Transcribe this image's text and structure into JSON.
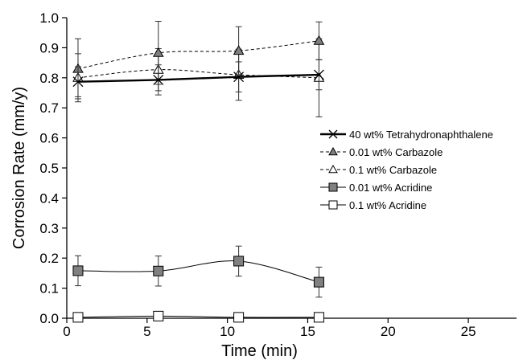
{
  "chart_data": {
    "type": "line",
    "title": "",
    "xlabel": "Time (min)",
    "ylabel": "Corrosion Rate (mm/y)",
    "xlim": [
      0,
      28
    ],
    "ylim": [
      0,
      1.0
    ],
    "x_ticks": [
      0,
      5,
      10,
      15,
      20,
      25
    ],
    "x_tick_labels": [
      "0",
      "5",
      "10",
      "15",
      "20",
      "25"
    ],
    "y_ticks": [
      0,
      0.1,
      0.2,
      0.3,
      0.4,
      0.5,
      0.6,
      0.7,
      0.8,
      0.9,
      1.0
    ],
    "y_tick_labels": [
      "0.0",
      "0.1",
      "0.2",
      "0.3",
      "0.4",
      "0.5",
      "0.6",
      "0.7",
      "0.8",
      "0.9",
      "1.0"
    ],
    "grid": false,
    "legend_position": "right",
    "series": [
      {
        "name": "40 wt% Tetrahydronaphthalene",
        "marker": "x",
        "line": "solid-thick",
        "color": "#000000",
        "x": [
          0.7,
          5.7,
          10.7,
          15.7
        ],
        "y": [
          0.787,
          0.793,
          0.803,
          0.81
        ],
        "err": [
          0.05,
          0.05,
          0.05,
          0.05
        ]
      },
      {
        "name": "0.01 wt% Carbazole",
        "marker": "triangle-filled",
        "line": "dashed",
        "color": "#808080",
        "x": [
          0.7,
          5.7,
          10.7,
          15.7
        ],
        "y": [
          0.83,
          0.883,
          0.89,
          0.923
        ],
        "err": [
          0.1,
          0.105,
          0.08,
          0.063
        ]
      },
      {
        "name": "0.1 wt% Carbazole",
        "marker": "triangle-open",
        "line": "dashed",
        "color": "#ffffff",
        "x": [
          0.7,
          5.7,
          10.7,
          15.7
        ],
        "y": [
          0.8,
          0.827,
          0.81,
          0.8
        ],
        "err": [
          0.08,
          0.07,
          0.085,
          0.13
        ]
      },
      {
        "name": "0.01 wt% Acridine",
        "marker": "square-filled",
        "line": "solid",
        "color": "#808080",
        "x": [
          0.7,
          5.7,
          10.7,
          15.7
        ],
        "y": [
          0.158,
          0.157,
          0.19,
          0.12
        ],
        "err": [
          0.05,
          0.05,
          0.05,
          0.05
        ]
      },
      {
        "name": "0.1 wt% Acridine",
        "marker": "square-open",
        "line": "solid",
        "color": "#ffffff",
        "x": [
          0.7,
          5.7,
          10.7,
          15.7
        ],
        "y": [
          0.003,
          0.007,
          0.003,
          0.003
        ],
        "err": [
          0,
          0,
          0,
          0
        ]
      }
    ]
  }
}
